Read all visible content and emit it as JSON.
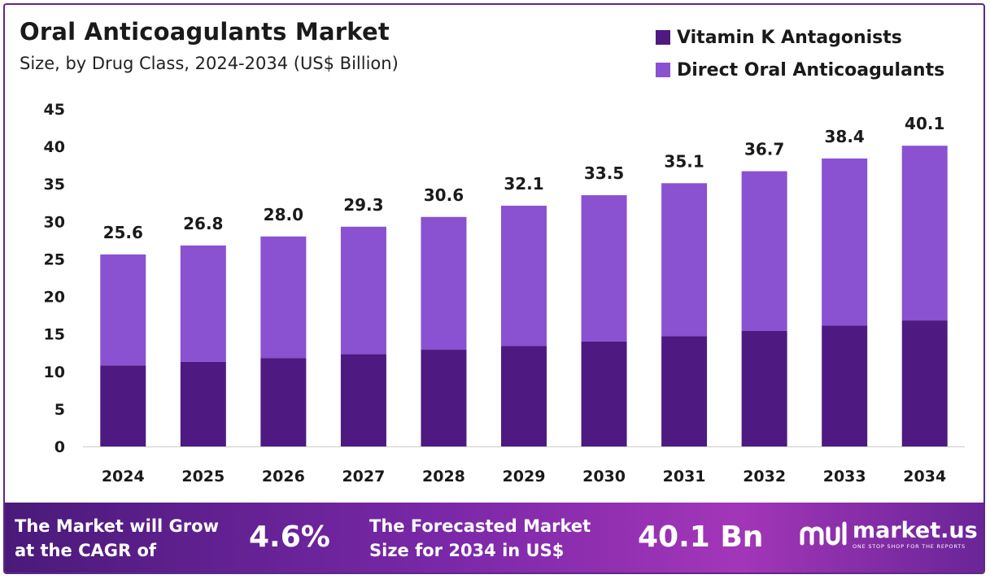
{
  "chart_data": {
    "type": "bar",
    "stacked": true,
    "title": "Oral Anticoagulants  Market",
    "subtitle": "Size, by Drug Class, 2024-2034 (US$ Billion)",
    "categories": [
      "2024",
      "2025",
      "2026",
      "2027",
      "2028",
      "2029",
      "2030",
      "2031",
      "2032",
      "2033",
      "2034"
    ],
    "series": [
      {
        "name": "Vitamin K Antagonists",
        "color": "#4e1a82",
        "values": [
          10.8,
          11.3,
          11.8,
          12.3,
          12.9,
          13.4,
          14.0,
          14.7,
          15.4,
          16.1,
          16.8
        ]
      },
      {
        "name": "Direct Oral Anticoagulants",
        "color": "#8a51d0",
        "values": [
          14.8,
          15.5,
          16.2,
          17.0,
          17.7,
          18.7,
          19.5,
          20.4,
          21.3,
          22.3,
          23.3
        ]
      }
    ],
    "totals_labels": [
      "25.6",
      "26.8",
      "28.0",
      "29.3",
      "30.6",
      "32.1",
      "33.5",
      "35.1",
      "36.7",
      "38.4",
      "40.1"
    ],
    "ylim": [
      0,
      45
    ],
    "yticks": [
      0,
      5,
      10,
      15,
      20,
      25,
      30,
      35,
      40,
      45
    ],
    "legend_position": "top-right",
    "grid": false
  },
  "footer": {
    "cagr_line1": "The Market will Grow",
    "cagr_line2": "at the CAGR of",
    "cagr_value": "4.6%",
    "forecast_line1": "The Forecasted Market",
    "forecast_line2": "Size for 2034 in US$",
    "forecast_value": "40.1 Bn",
    "brand": "market.us",
    "tagline": "ONE STOP SHOP FOR THE REPORTS"
  }
}
